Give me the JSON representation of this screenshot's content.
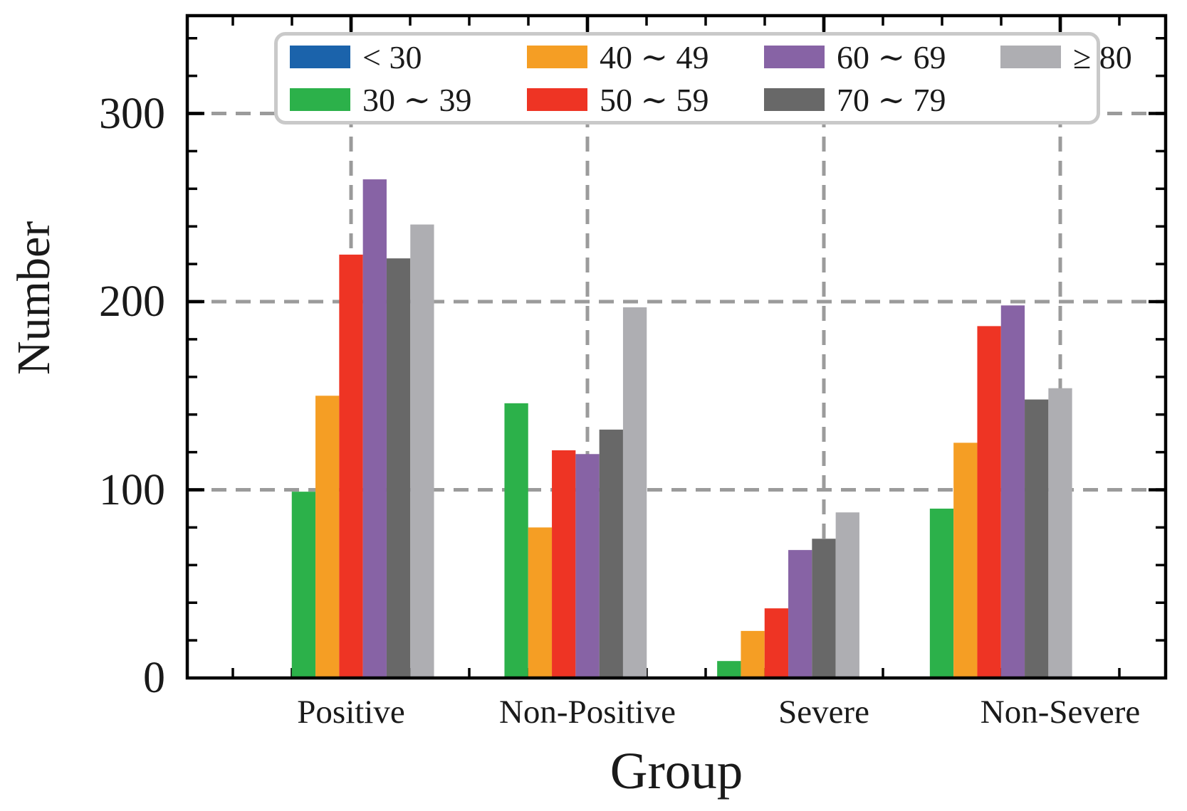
{
  "figure": {
    "background": "#ffffff"
  },
  "chart_data": {
    "type": "bar",
    "title": "",
    "xlabel": "Group",
    "ylabel": "Number",
    "categories": [
      "Positive",
      "Non-Positive",
      "Severe",
      "Non-Severe"
    ],
    "series": [
      {
        "name": "< 30",
        "color": "#1b63ab",
        "values": [
          0,
          0,
          0,
          0
        ]
      },
      {
        "name": "30 ∼ 39",
        "color": "#2cb14a",
        "values": [
          99,
          146,
          9,
          90
        ]
      },
      {
        "name": "40 ∼ 49",
        "color": "#f59e24",
        "values": [
          150,
          80,
          25,
          125
        ]
      },
      {
        "name": "50 ∼ 59",
        "color": "#ee3424",
        "values": [
          225,
          121,
          37,
          187
        ]
      },
      {
        "name": "60 ∼ 69",
        "color": "#8763a5",
        "values": [
          265,
          119,
          68,
          198
        ]
      },
      {
        "name": "70 ∼ 79",
        "color": "#686868",
        "values": [
          223,
          132,
          74,
          148
        ]
      },
      {
        "name": "≥ 80",
        "color": "#aeaeb2",
        "values": [
          241,
          197,
          88,
          154
        ]
      }
    ],
    "y_ticks": [
      0,
      100,
      200,
      300
    ],
    "ylim": [
      0,
      352
    ],
    "grid": {
      "show": true,
      "style": "dashed",
      "color": "#9b9b9b"
    },
    "axis_color": "#000000",
    "legend": {
      "position": "top",
      "columns": 4
    }
  }
}
